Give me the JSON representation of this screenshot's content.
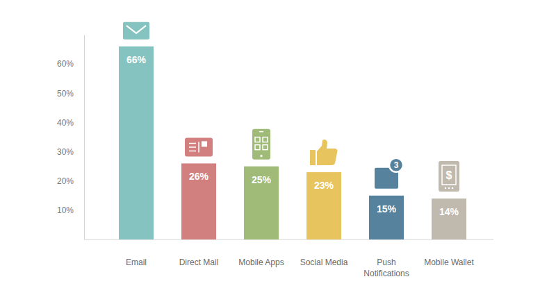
{
  "chart_data": {
    "type": "bar",
    "categories": [
      "Email",
      "Direct Mail",
      "Mobile Apps",
      "Social Media",
      "Push Notifications",
      "Mobile Wallet"
    ],
    "values": [
      66,
      26,
      25,
      23,
      15,
      14
    ],
    "value_labels": [
      "66%",
      "26%",
      "25%",
      "23%",
      "15%",
      "14%"
    ],
    "colors": [
      "#84c3bf",
      "#d17f7f",
      "#a0ba78",
      "#e7c45e",
      "#56829e",
      "#bfb9ae"
    ],
    "ylim": [
      0,
      70
    ],
    "yticks": [
      {
        "value": 10,
        "label": "10%"
      },
      {
        "value": 20,
        "label": "20%"
      },
      {
        "value": 30,
        "label": "30%"
      },
      {
        "value": 40,
        "label": "40%"
      },
      {
        "value": 50,
        "label": "50%"
      },
      {
        "value": 60,
        "label": "60%"
      }
    ],
    "data_labels": true,
    "grid": false,
    "annotations": [
      {
        "text": "3",
        "x": "Push Notifications"
      },
      {
        "text": "$",
        "x": "Mobile Wallet"
      }
    ]
  }
}
